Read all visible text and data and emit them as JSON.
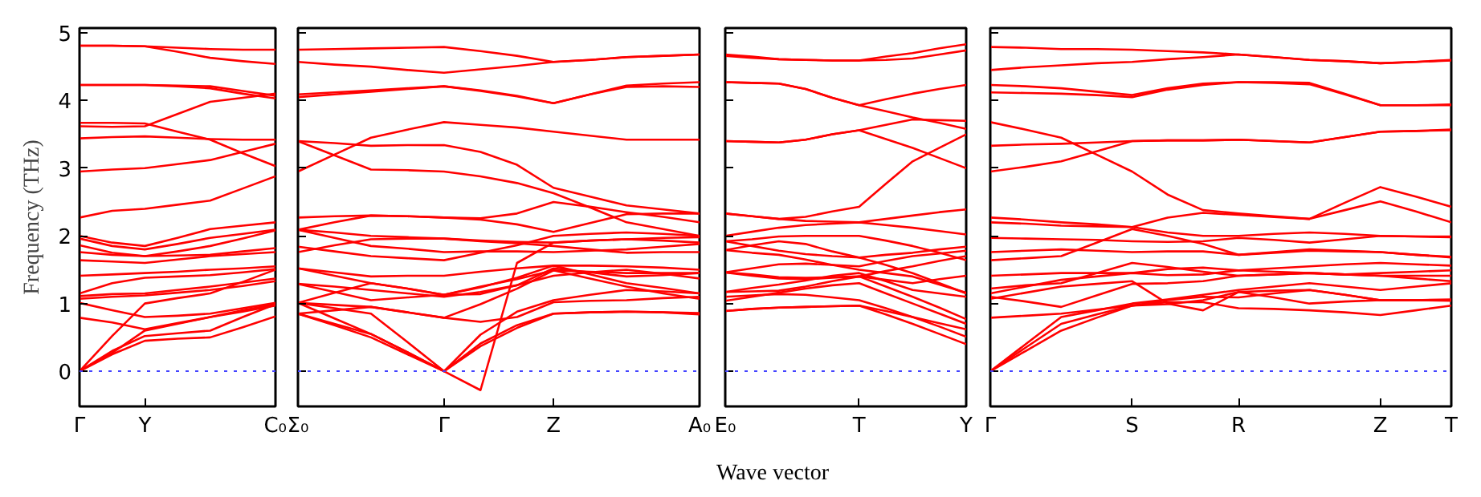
{
  "chart_data": [
    {
      "type": "line",
      "ylabel": "Frequency (THz)",
      "ylim": [
        -0.52,
        5.07
      ],
      "yticks": [
        0,
        1,
        2,
        3,
        4,
        5
      ],
      "categories": [
        "Γ",
        null,
        "Y",
        null,
        null,
        null,
        "C₀"
      ],
      "ref_lines": [
        {
          "axis": "y",
          "value": 0,
          "color": "#4444ff",
          "line_style": "dotted"
        }
      ],
      "series": [
        {
          "color": "#ff0000",
          "values": [
            4.81,
            4.81,
            4.8,
            4.78,
            4.76,
            4.75,
            4.75
          ]
        },
        {
          "color": "#ff0000",
          "values": [
            4.81,
            4.81,
            4.8,
            4.72,
            4.63,
            4.58,
            4.54
          ]
        },
        {
          "color": "#ff0000",
          "values": [
            4.23,
            4.23,
            4.23,
            4.22,
            4.21,
            4.14,
            4.07
          ]
        },
        {
          "color": "#ff0000",
          "values": [
            4.23,
            4.23,
            4.23,
            4.21,
            4.18,
            4.1,
            4.03
          ]
        },
        {
          "color": "#ff0000",
          "values": [
            3.62,
            3.61,
            3.62,
            3.8,
            3.98,
            4.04,
            4.1
          ]
        },
        {
          "color": "#ff0000",
          "values": [
            3.67,
            3.67,
            3.66,
            3.54,
            3.42,
            3.22,
            3.03
          ]
        },
        {
          "color": "#ff0000",
          "values": [
            3.44,
            3.46,
            3.47,
            3.45,
            3.43,
            3.42,
            3.42
          ]
        },
        {
          "color": "#ff0000",
          "values": [
            2.95,
            2.98,
            3.0,
            3.06,
            3.12,
            3.24,
            3.36
          ]
        },
        {
          "color": "#ff0000",
          "values": [
            2.27,
            2.37,
            2.4,
            2.46,
            2.52,
            2.7,
            2.88
          ]
        },
        {
          "color": "#ff0000",
          "values": [
            2.0,
            1.9,
            1.85,
            1.97,
            2.1,
            2.15,
            2.2
          ]
        },
        {
          "color": "#ff0000",
          "values": [
            1.96,
            1.85,
            1.8,
            1.88,
            1.97,
            2.03,
            2.09
          ]
        },
        {
          "color": "#ff0000",
          "values": [
            1.86,
            1.75,
            1.7,
            1.77,
            1.85,
            1.96,
            2.08
          ]
        },
        {
          "color": "#ff0000",
          "values": [
            1.76,
            1.72,
            1.7,
            1.71,
            1.72,
            1.77,
            1.82
          ]
        },
        {
          "color": "#ff0000",
          "values": [
            1.64,
            1.62,
            1.6,
            1.65,
            1.7,
            1.73,
            1.76
          ]
        },
        {
          "color": "#ff0000",
          "values": [
            1.41,
            1.43,
            1.45,
            1.47,
            1.5,
            1.52,
            1.55
          ]
        },
        {
          "color": "#ff0000",
          "values": [
            1.15,
            1.3,
            1.38,
            1.4,
            1.42,
            1.46,
            1.51
          ]
        },
        {
          "color": "#ff0000",
          "values": [
            1.11,
            1.14,
            1.15,
            1.2,
            1.25,
            1.31,
            1.37
          ]
        },
        {
          "color": "#ff0000",
          "values": [
            1.07,
            1.1,
            1.12,
            1.16,
            1.2,
            1.26,
            1.33
          ]
        },
        {
          "color": "#ff0000",
          "values": [
            1.01,
            0.9,
            0.8,
            0.82,
            0.85,
            0.93,
            1.01
          ]
        },
        {
          "color": "#ff0000",
          "values": [
            0.79,
            0.72,
            0.62,
            0.71,
            0.8,
            0.9,
            0.99
          ]
        },
        {
          "color": "#ff0000",
          "values": [
            0,
            0.52,
            1.0,
            1.08,
            1.15,
            1.32,
            1.5
          ]
        },
        {
          "color": "#ff0000",
          "values": [
            0,
            0.3,
            0.52,
            0.56,
            0.6,
            0.8,
            0.99
          ]
        },
        {
          "color": "#ff0000",
          "values": [
            0,
            0.25,
            0.45,
            0.48,
            0.5,
            0.65,
            0.81
          ]
        },
        {
          "color": "#ff0000",
          "values": [
            0,
            0.27,
            0.6,
            0.7,
            0.8,
            0.88,
            0.97
          ]
        }
      ]
    },
    {
      "type": "line",
      "tick_labels": "x",
      "ylim": [
        -0.52,
        5.07
      ],
      "yticks": [
        0,
        1,
        2,
        3,
        4,
        5
      ],
      "categories": [
        "Σ₀",
        null,
        null,
        null,
        "Γ",
        null,
        null,
        "Z",
        null,
        null,
        null,
        "A₀"
      ],
      "ref_lines": [
        {
          "axis": "y",
          "value": 0,
          "color": "#4444ff",
          "line_style": "dotted"
        }
      ],
      "series": [
        {
          "color": "#ff0000",
          "values": [
            4.75,
            4.76,
            4.77,
            4.78,
            4.79,
            4.73,
            4.66,
            4.57,
            4.6,
            4.64,
            4.66,
            4.68
          ]
        },
        {
          "color": "#ff0000",
          "values": [
            4.57,
            4.53,
            4.5,
            4.45,
            4.41,
            4.46,
            4.51,
            4.57,
            4.6,
            4.64,
            4.66,
            4.68
          ]
        },
        {
          "color": "#ff0000",
          "values": [
            4.09,
            4.12,
            4.15,
            4.18,
            4.21,
            4.15,
            4.07,
            3.96,
            4.09,
            4.22,
            4.25,
            4.27
          ]
        },
        {
          "color": "#ff0000",
          "values": [
            4.05,
            4.09,
            4.13,
            4.17,
            4.21,
            4.14,
            4.06,
            3.96,
            4.09,
            4.2,
            4.21,
            4.2
          ]
        },
        {
          "color": "#ff0000",
          "values": [
            2.95,
            3.2,
            3.45,
            3.57,
            3.68,
            3.64,
            3.6,
            3.54,
            3.48,
            3.42,
            3.42,
            3.42
          ]
        },
        {
          "color": "#ff0000",
          "values": [
            3.4,
            3.37,
            3.33,
            3.34,
            3.34,
            3.24,
            3.05,
            2.71,
            2.58,
            2.45,
            2.39,
            2.33
          ]
        },
        {
          "color": "#ff0000",
          "values": [
            3.4,
            3.19,
            2.98,
            2.97,
            2.95,
            2.88,
            2.78,
            2.63,
            2.42,
            2.2,
            2.1,
            2.0
          ]
        },
        {
          "color": "#ff0000",
          "values": [
            2.27,
            2.29,
            2.3,
            2.29,
            2.27,
            2.26,
            2.33,
            2.5,
            2.43,
            2.35,
            2.28,
            2.2
          ]
        },
        {
          "color": "#ff0000",
          "values": [
            2.09,
            2.2,
            2.3,
            2.29,
            2.27,
            2.24,
            2.17,
            2.06,
            2.19,
            2.32,
            2.33,
            2.33
          ]
        },
        {
          "color": "#ff0000",
          "values": [
            2.09,
            2.05,
            2.0,
            1.98,
            1.96,
            1.92,
            1.89,
            1.85,
            1.8,
            1.75,
            1.76,
            1.76
          ]
        },
        {
          "color": "#ff0000",
          "values": [
            2.09,
            1.97,
            1.85,
            1.81,
            1.76,
            1.77,
            1.77,
            1.76,
            1.78,
            1.8,
            1.84,
            1.88
          ]
        },
        {
          "color": "#ff0000",
          "values": [
            1.84,
            1.77,
            1.7,
            1.67,
            1.64,
            1.75,
            1.86,
            2.0,
            2.03,
            2.05,
            2.03,
            2.0
          ]
        },
        {
          "color": "#ff0000",
          "values": [
            1.76,
            1.86,
            1.95,
            1.96,
            1.96,
            1.93,
            1.91,
            1.9,
            1.93,
            1.95,
            1.93,
            1.9
          ]
        },
        {
          "color": "#ff0000",
          "values": [
            1.52,
            1.46,
            1.4,
            1.41,
            1.41,
            1.47,
            1.52,
            1.56,
            1.56,
            1.55,
            1.53,
            1.5
          ]
        },
        {
          "color": "#ff0000",
          "values": [
            1.52,
            1.41,
            1.3,
            1.22,
            1.13,
            1.25,
            1.36,
            1.49,
            1.47,
            1.45,
            1.45,
            1.45
          ]
        },
        {
          "color": "#ff0000",
          "values": [
            1.29,
            1.25,
            1.2,
            1.15,
            1.1,
            1.17,
            1.27,
            1.41,
            1.46,
            1.5,
            1.44,
            1.37
          ]
        },
        {
          "color": "#ff0000",
          "values": [
            1.29,
            1.17,
            1.05,
            1.09,
            1.13,
            1.14,
            1.27,
            1.52,
            1.46,
            1.4,
            1.42,
            1.45
          ]
        },
        {
          "color": "#ff0000",
          "values": [
            1.01,
            1.16,
            1.3,
            1.22,
            1.13,
            1.24,
            1.38,
            1.56,
            1.43,
            1.3,
            1.23,
            1.15
          ]
        },
        {
          "color": "#ff0000",
          "values": [
            1.01,
            0.98,
            0.95,
            0.87,
            0.79,
            0.99,
            1.22,
            1.49,
            1.37,
            1.25,
            1.15,
            1.07
          ]
        },
        {
          "color": "#ff0000",
          "values": [
            0.85,
            0.9,
            0.95,
            0.87,
            0.79,
            0.73,
            0.8,
            1.02,
            1.04,
            1.05,
            1.08,
            1.1
          ]
        },
        {
          "color": "#ff0000",
          "values": [
            1.01,
            0.93,
            0.85,
            0.43,
            0,
            0.37,
            0.64,
            0.85,
            0.87,
            0.88,
            0.87,
            0.86
          ]
        },
        {
          "color": "#ff0000",
          "values": [
            0.85,
            0.68,
            0.5,
            0.25,
            0,
            0.54,
            0.88,
            1.05,
            1.13,
            1.2,
            1.18,
            1.15
          ]
        },
        {
          "color": "#ff0000",
          "values": [
            1.01,
            0.78,
            0.55,
            0.28,
            0,
            -0.28,
            1.6,
            1.9,
            1.93,
            1.95,
            1.97,
            1.98
          ]
        },
        {
          "color": "#ff0000",
          "values": [
            0.85,
            0.7,
            0.55,
            0.28,
            0,
            0.41,
            0.68,
            0.85,
            0.87,
            0.88,
            0.87,
            0.84
          ]
        }
      ]
    },
    {
      "type": "line",
      "tick_labels": "x",
      "xlabel": "Wave vector",
      "ylim": [
        -0.52,
        5.07
      ],
      "yticks": [
        0,
        1,
        2,
        3,
        4,
        5
      ],
      "categories": [
        "E₀",
        null,
        null,
        null,
        null,
        "T",
        null,
        null,
        null,
        "Y"
      ],
      "ref_lines": [
        {
          "axis": "y",
          "value": 0,
          "color": "#4444ff",
          "line_style": "dotted"
        }
      ],
      "series": [
        {
          "color": "#ff0000",
          "values": [
            4.68,
            4.65,
            4.61,
            4.6,
            4.59,
            4.59,
            4.65,
            4.7,
            4.77,
            4.83
          ]
        },
        {
          "color": "#ff0000",
          "values": [
            4.66,
            4.63,
            4.61,
            4.6,
            4.59,
            4.59,
            4.6,
            4.62,
            4.68,
            4.74
          ]
        },
        {
          "color": "#ff0000",
          "values": [
            4.27,
            4.26,
            4.25,
            4.17,
            4.04,
            3.93,
            4.02,
            4.1,
            4.17,
            4.23
          ]
        },
        {
          "color": "#ff0000",
          "values": [
            4.27,
            4.26,
            4.25,
            4.17,
            4.04,
            3.93,
            3.84,
            3.75,
            3.67,
            3.58
          ]
        },
        {
          "color": "#ff0000",
          "values": [
            3.4,
            3.39,
            3.38,
            3.42,
            3.5,
            3.56,
            3.64,
            3.72,
            3.71,
            3.7
          ]
        },
        {
          "color": "#ff0000",
          "values": [
            3.4,
            3.39,
            3.38,
            3.42,
            3.5,
            3.56,
            3.43,
            3.3,
            3.15,
            3.0
          ]
        },
        {
          "color": "#ff0000",
          "values": [
            2.33,
            2.29,
            2.25,
            2.28,
            2.36,
            2.43,
            2.77,
            3.1,
            3.3,
            3.5
          ]
        },
        {
          "color": "#ff0000",
          "values": [
            2.33,
            2.29,
            2.25,
            2.22,
            2.21,
            2.2,
            2.25,
            2.3,
            2.35,
            2.39
          ]
        },
        {
          "color": "#ff0000",
          "values": [
            2.0,
            2.06,
            2.12,
            2.16,
            2.18,
            2.2,
            2.16,
            2.12,
            2.07,
            2.02
          ]
        },
        {
          "color": "#ff0000",
          "values": [
            1.92,
            1.95,
            1.99,
            2.0,
            2.0,
            2.0,
            1.93,
            1.85,
            1.75,
            1.64
          ]
        },
        {
          "color": "#ff0000",
          "values": [
            1.79,
            1.86,
            1.92,
            1.88,
            1.77,
            1.68,
            1.72,
            1.75,
            1.8,
            1.84
          ]
        },
        {
          "color": "#ff0000",
          "values": [
            1.92,
            1.85,
            1.78,
            1.73,
            1.7,
            1.68,
            1.57,
            1.45,
            1.3,
            1.15
          ]
        },
        {
          "color": "#ff0000",
          "values": [
            1.79,
            1.75,
            1.72,
            1.65,
            1.57,
            1.5,
            1.45,
            1.4,
            1.28,
            1.16
          ]
        },
        {
          "color": "#ff0000",
          "values": [
            1.46,
            1.52,
            1.58,
            1.59,
            1.57,
            1.55,
            1.63,
            1.7,
            1.74,
            1.78
          ]
        },
        {
          "color": "#ff0000",
          "values": [
            1.46,
            1.43,
            1.39,
            1.38,
            1.39,
            1.4,
            1.48,
            1.55,
            1.63,
            1.7
          ]
        },
        {
          "color": "#ff0000",
          "values": [
            1.46,
            1.41,
            1.37,
            1.36,
            1.38,
            1.4,
            1.35,
            1.3,
            1.36,
            1.41
          ]
        },
        {
          "color": "#ff0000",
          "values": [
            1.17,
            1.23,
            1.28,
            1.34,
            1.41,
            1.45,
            1.33,
            1.2,
            1.15,
            1.1
          ]
        },
        {
          "color": "#ff0000",
          "values": [
            1.17,
            1.18,
            1.19,
            1.25,
            1.33,
            1.4,
            1.25,
            1.1,
            0.94,
            0.77
          ]
        },
        {
          "color": "#ff0000",
          "values": [
            1.1,
            1.12,
            1.14,
            1.13,
            1.09,
            1.05,
            0.93,
            0.8,
            0.71,
            0.62
          ]
        },
        {
          "color": "#ff0000",
          "values": [
            0.89,
            0.92,
            0.94,
            0.95,
            0.96,
            0.97,
            0.89,
            0.8,
            0.66,
            0.51
          ]
        },
        {
          "color": "#ff0000",
          "values": [
            0.89,
            0.92,
            0.94,
            0.95,
            0.96,
            0.97,
            0.84,
            0.7,
            0.55,
            0.4
          ]
        },
        {
          "color": "#ff0000",
          "values": [
            1.04,
            1.1,
            1.16,
            1.22,
            1.27,
            1.3,
            1.15,
            1.0,
            0.85,
            0.7
          ]
        }
      ]
    },
    {
      "type": "line",
      "tick_labels": "x",
      "ylim": [
        -0.52,
        5.07
      ],
      "yticks": [
        0,
        1,
        2,
        3,
        4,
        5
      ],
      "categories": [
        "Γ",
        null,
        null,
        null,
        "S",
        null,
        null,
        "R",
        null,
        null,
        null,
        "Z",
        null,
        "T"
      ],
      "ref_lines": [
        {
          "axis": "y",
          "value": 0,
          "color": "#4444ff",
          "line_style": "dotted"
        }
      ],
      "series": [
        {
          "color": "#ff0000",
          "values": [
            4.79,
            4.78,
            4.76,
            4.76,
            4.75,
            4.73,
            4.71,
            4.68,
            4.64,
            4.6,
            4.58,
            4.55,
            4.57,
            4.59
          ]
        },
        {
          "color": "#ff0000",
          "values": [
            4.45,
            4.49,
            4.52,
            4.55,
            4.57,
            4.61,
            4.64,
            4.68,
            4.64,
            4.6,
            4.58,
            4.55,
            4.57,
            4.6
          ]
        },
        {
          "color": "#ff0000",
          "values": [
            4.23,
            4.21,
            4.18,
            4.13,
            4.08,
            4.18,
            4.25,
            4.27,
            4.27,
            4.26,
            4.1,
            3.93,
            3.93,
            3.93
          ]
        },
        {
          "color": "#ff0000",
          "values": [
            4.12,
            4.11,
            4.1,
            4.08,
            4.05,
            4.16,
            4.23,
            4.27,
            4.26,
            4.24,
            4.09,
            3.93,
            3.93,
            3.94
          ]
        },
        {
          "color": "#ff0000",
          "values": [
            3.68,
            3.57,
            3.45,
            3.2,
            2.95,
            2.61,
            2.38,
            2.33,
            2.29,
            2.25,
            2.49,
            2.72,
            2.58,
            2.43
          ]
        },
        {
          "color": "#ff0000",
          "values": [
            3.33,
            3.35,
            3.36,
            3.38,
            3.4,
            3.41,
            3.41,
            3.42,
            3.4,
            3.38,
            3.46,
            3.54,
            3.55,
            3.56
          ]
        },
        {
          "color": "#ff0000",
          "values": [
            2.95,
            3.02,
            3.1,
            3.25,
            3.4,
            3.41,
            3.41,
            3.42,
            3.4,
            3.38,
            3.46,
            3.54,
            3.55,
            3.57
          ]
        },
        {
          "color": "#ff0000",
          "values": [
            2.27,
            2.24,
            2.2,
            2.17,
            2.13,
            2.27,
            2.34,
            2.31,
            2.28,
            2.25,
            2.38,
            2.51,
            2.36,
            2.2
          ]
        },
        {
          "color": "#ff0000",
          "values": [
            2.2,
            2.18,
            2.15,
            2.14,
            2.13,
            2.05,
            2.0,
            2.0,
            2.03,
            2.05,
            2.03,
            2.0,
            1.99,
            1.98
          ]
        },
        {
          "color": "#ff0000",
          "values": [
            1.97,
            1.96,
            1.95,
            1.94,
            1.92,
            1.91,
            1.92,
            1.97,
            1.94,
            1.9,
            1.95,
            2.0,
            1.99,
            1.99
          ]
        },
        {
          "color": "#ff0000",
          "values": [
            1.76,
            1.78,
            1.8,
            1.78,
            1.76,
            1.77,
            1.77,
            1.72,
            1.75,
            1.78,
            1.77,
            1.76,
            1.72,
            1.68
          ]
        },
        {
          "color": "#ff0000",
          "values": [
            1.64,
            1.67,
            1.7,
            1.9,
            2.1,
            2.0,
            1.88,
            1.72,
            1.76,
            1.8,
            1.78,
            1.76,
            1.72,
            1.69
          ]
        },
        {
          "color": "#ff0000",
          "values": [
            1.41,
            1.43,
            1.45,
            1.45,
            1.45,
            1.51,
            1.53,
            1.49,
            1.52,
            1.55,
            1.58,
            1.6,
            1.58,
            1.56
          ]
        },
        {
          "color": "#ff0000",
          "values": [
            1.15,
            1.25,
            1.35,
            1.4,
            1.45,
            1.42,
            1.43,
            1.49,
            1.47,
            1.45,
            1.43,
            1.41,
            1.41,
            1.41
          ]
        },
        {
          "color": "#ff0000",
          "values": [
            1.1,
            1.03,
            0.95,
            1.12,
            1.29,
            1.3,
            1.33,
            1.41,
            1.43,
            1.45,
            1.43,
            1.41,
            1.37,
            1.33
          ]
        },
        {
          "color": "#ff0000",
          "values": [
            1.07,
            1.16,
            1.25,
            1.29,
            1.33,
            1.0,
            0.9,
            1.17,
            1.19,
            1.2,
            1.13,
            1.05,
            1.05,
            1.05
          ]
        },
        {
          "color": "#ff0000",
          "values": [
            0.79,
            0.82,
            0.85,
            0.91,
            0.97,
            1.05,
            1.1,
            1.09,
            1.15,
            1.2,
            1.13,
            1.05,
            1.05,
            1.04
          ]
        },
        {
          "color": "#ff0000",
          "values": [
            1.22,
            1.27,
            1.3,
            1.45,
            1.6,
            1.54,
            1.47,
            1.41,
            1.43,
            1.45,
            1.43,
            1.45,
            1.47,
            1.49
          ]
        },
        {
          "color": "#ff0000",
          "values": [
            0,
            0.3,
            0.6,
            0.79,
            0.97,
            1.02,
            1.02,
            0.93,
            0.92,
            0.9,
            0.87,
            0.83,
            0.9,
            0.97
          ]
        },
        {
          "color": "#ff0000",
          "values": [
            0,
            0.35,
            0.7,
            0.84,
            0.97,
            0.99,
            1.05,
            1.17,
            1.09,
            1.0,
            1.03,
            1.05,
            1.05,
            1.06
          ]
        },
        {
          "color": "#ff0000",
          "values": [
            0,
            0.4,
            0.8,
            0.9,
            1.0,
            1.06,
            1.13,
            1.2,
            1.25,
            1.3,
            1.25,
            1.2,
            1.25,
            1.3
          ]
        }
      ]
    }
  ]
}
